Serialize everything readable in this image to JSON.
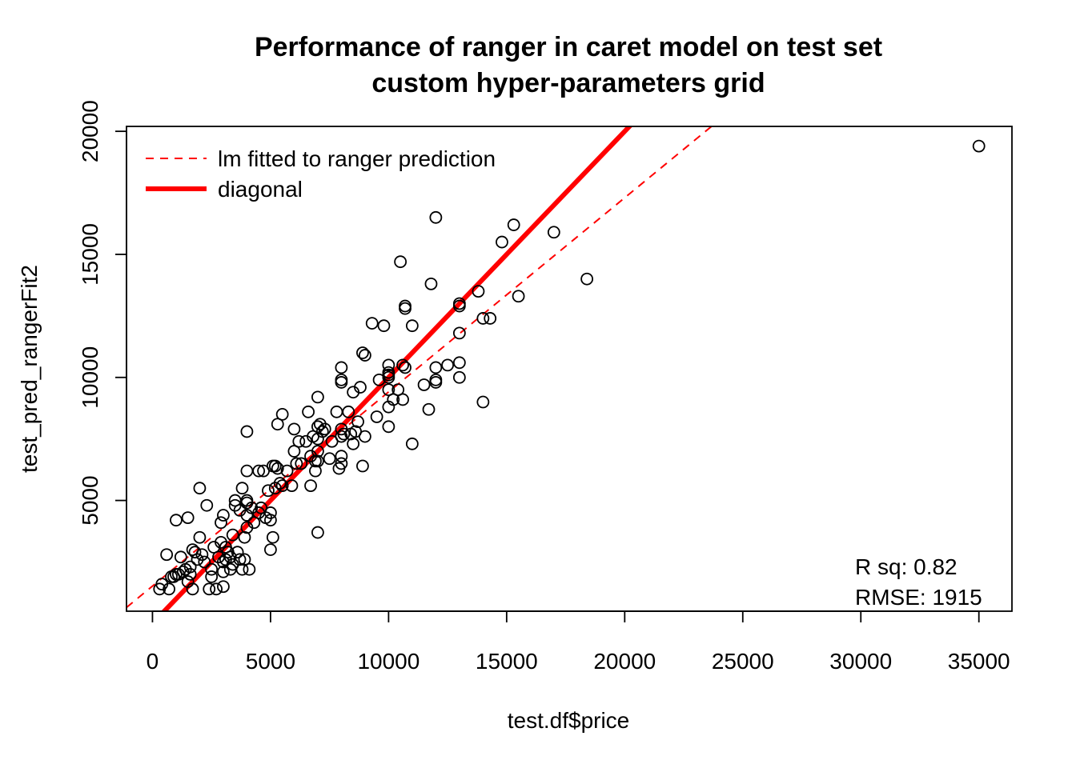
{
  "chart_data": {
    "type": "scatter",
    "title": "Performance of ranger in caret model on test set",
    "subtitle": "custom hyper-parameters grid",
    "xlabel": "test.df$price",
    "ylabel": "test_pred_rangerFit2",
    "xlim": [
      -1100,
      36400
    ],
    "ylim": [
      500,
      20200
    ],
    "x_ticks": [
      0,
      5000,
      10000,
      15000,
      20000,
      25000,
      30000,
      35000
    ],
    "y_ticks": [
      5000,
      10000,
      15000,
      20000
    ],
    "x_tick_labels": [
      "0",
      "5000",
      "10000",
      "15000",
      "20000",
      "25000",
      "30000",
      "35000"
    ],
    "y_tick_labels": [
      "5000",
      "10000",
      "15000",
      "20000"
    ],
    "grid": false,
    "legend": {
      "position": "top-left",
      "entries": [
        {
          "label": "lm fitted to ranger prediction",
          "color": "#ff0000",
          "style": "dashed"
        },
        {
          "label": "diagonal",
          "color": "#ff0000",
          "style": "solid-thick"
        }
      ]
    },
    "annotations": [
      "R sq: 0.82",
      "RMSE: 1915"
    ],
    "lines": [
      {
        "name": "lm fitted to ranger prediction",
        "style": "dashed",
        "color": "#ff0000",
        "intercept": 1520,
        "slope": 0.789
      },
      {
        "name": "diagonal",
        "style": "solid",
        "color": "#ff0000",
        "intercept": 0,
        "slope": 1
      }
    ],
    "point_style": {
      "shape": "open-circle",
      "color": "#000000"
    },
    "points": [
      [
        300,
        1400
      ],
      [
        400,
        1600
      ],
      [
        600,
        2800
      ],
      [
        700,
        1400
      ],
      [
        800,
        1900
      ],
      [
        900,
        1900
      ],
      [
        1000,
        4200
      ],
      [
        1000,
        2000
      ],
      [
        1100,
        2000
      ],
      [
        1200,
        2700
      ],
      [
        1300,
        2100
      ],
      [
        1400,
        2200
      ],
      [
        1500,
        4300
      ],
      [
        1500,
        1700
      ],
      [
        1600,
        2000
      ],
      [
        1600,
        2300
      ],
      [
        1700,
        3000
      ],
      [
        1700,
        1400
      ],
      [
        1800,
        2900
      ],
      [
        1900,
        2600
      ],
      [
        2000,
        5500
      ],
      [
        2000,
        3500
      ],
      [
        2100,
        2800
      ],
      [
        2200,
        2500
      ],
      [
        2300,
        4800
      ],
      [
        2400,
        1400
      ],
      [
        2500,
        1900
      ],
      [
        2500,
        2200
      ],
      [
        2600,
        3100
      ],
      [
        2700,
        1400
      ],
      [
        2800,
        2700
      ],
      [
        2900,
        3300
      ],
      [
        2900,
        4100
      ],
      [
        3000,
        4400
      ],
      [
        3000,
        2500
      ],
      [
        3000,
        2100
      ],
      [
        3000,
        1500
      ],
      [
        3100,
        3100
      ],
      [
        3100,
        2600
      ],
      [
        3200,
        2900
      ],
      [
        3300,
        2700
      ],
      [
        3300,
        2200
      ],
      [
        3400,
        3600
      ],
      [
        3400,
        2400
      ],
      [
        3500,
        5000
      ],
      [
        3500,
        4800
      ],
      [
        3600,
        2900
      ],
      [
        3700,
        2600
      ],
      [
        3700,
        4600
      ],
      [
        3800,
        5500
      ],
      [
        3800,
        2200
      ],
      [
        3900,
        3500
      ],
      [
        3900,
        2600
      ],
      [
        4000,
        4400
      ],
      [
        4000,
        4900
      ],
      [
        4000,
        5000
      ],
      [
        4000,
        7800
      ],
      [
        4000,
        6200
      ],
      [
        4000,
        3900
      ],
      [
        4100,
        2200
      ],
      [
        4200,
        4700
      ],
      [
        4300,
        4100
      ],
      [
        4500,
        6200
      ],
      [
        4500,
        4500
      ],
      [
        4600,
        4700
      ],
      [
        4700,
        6200
      ],
      [
        4800,
        4300
      ],
      [
        4900,
        5400
      ],
      [
        5000,
        4500
      ],
      [
        5000,
        4200
      ],
      [
        5000,
        3000
      ],
      [
        5100,
        6400
      ],
      [
        5100,
        3500
      ],
      [
        5200,
        6400
      ],
      [
        5200,
        5500
      ],
      [
        5300,
        8100
      ],
      [
        5300,
        6300
      ],
      [
        5400,
        5700
      ],
      [
        5500,
        8500
      ],
      [
        5500,
        5600
      ],
      [
        5700,
        6200
      ],
      [
        5900,
        5600
      ],
      [
        6000,
        7900
      ],
      [
        6000,
        7000
      ],
      [
        6100,
        6500
      ],
      [
        6200,
        7400
      ],
      [
        6300,
        6500
      ],
      [
        6500,
        7400
      ],
      [
        6600,
        8600
      ],
      [
        6700,
        5600
      ],
      [
        6700,
        6800
      ],
      [
        6800,
        7600
      ],
      [
        6900,
        6200
      ],
      [
        6900,
        6600
      ],
      [
        7000,
        9200
      ],
      [
        7000,
        8000
      ],
      [
        7000,
        7500
      ],
      [
        7000,
        7000
      ],
      [
        7000,
        6600
      ],
      [
        7000,
        3700
      ],
      [
        7100,
        8100
      ],
      [
        7200,
        7800
      ],
      [
        7300,
        7900
      ],
      [
        7500,
        6700
      ],
      [
        7600,
        7400
      ],
      [
        7800,
        8600
      ],
      [
        7900,
        6300
      ],
      [
        8000,
        10400
      ],
      [
        8000,
        9900
      ],
      [
        8000,
        9800
      ],
      [
        8000,
        7900
      ],
      [
        8000,
        7600
      ],
      [
        8000,
        6800
      ],
      [
        8000,
        6500
      ],
      [
        8100,
        7700
      ],
      [
        8300,
        8600
      ],
      [
        8400,
        7700
      ],
      [
        8500,
        9400
      ],
      [
        8500,
        7300
      ],
      [
        8600,
        7800
      ],
      [
        8700,
        8200
      ],
      [
        8800,
        9600
      ],
      [
        8900,
        11000
      ],
      [
        8900,
        6400
      ],
      [
        9000,
        10900
      ],
      [
        9000,
        7600
      ],
      [
        9300,
        12200
      ],
      [
        9500,
        8400
      ],
      [
        9600,
        9900
      ],
      [
        9800,
        12100
      ],
      [
        10000,
        10500
      ],
      [
        10000,
        10200
      ],
      [
        10000,
        10100
      ],
      [
        10000,
        10000
      ],
      [
        10000,
        9500
      ],
      [
        10000,
        8800
      ],
      [
        10000,
        8000
      ],
      [
        10200,
        9100
      ],
      [
        10400,
        9500
      ],
      [
        10500,
        14700
      ],
      [
        10600,
        10500
      ],
      [
        10600,
        9100
      ],
      [
        10700,
        12900
      ],
      [
        10700,
        12800
      ],
      [
        10700,
        10400
      ],
      [
        11000,
        12100
      ],
      [
        11000,
        7300
      ],
      [
        11500,
        9700
      ],
      [
        11700,
        8700
      ],
      [
        11800,
        13800
      ],
      [
        12000,
        16500
      ],
      [
        12000,
        10400
      ],
      [
        12000,
        9800
      ],
      [
        12000,
        9900
      ],
      [
        12500,
        10500
      ],
      [
        13000,
        13000
      ],
      [
        13000,
        12900
      ],
      [
        13000,
        11800
      ],
      [
        13000,
        10600
      ],
      [
        13000,
        10000
      ],
      [
        13800,
        13500
      ],
      [
        14000,
        12400
      ],
      [
        14000,
        9000
      ],
      [
        14300,
        12400
      ],
      [
        14800,
        15500
      ],
      [
        15300,
        16200
      ],
      [
        15500,
        13300
      ],
      [
        17000,
        15900
      ],
      [
        18400,
        14000
      ],
      [
        35000,
        19400
      ]
    ]
  }
}
